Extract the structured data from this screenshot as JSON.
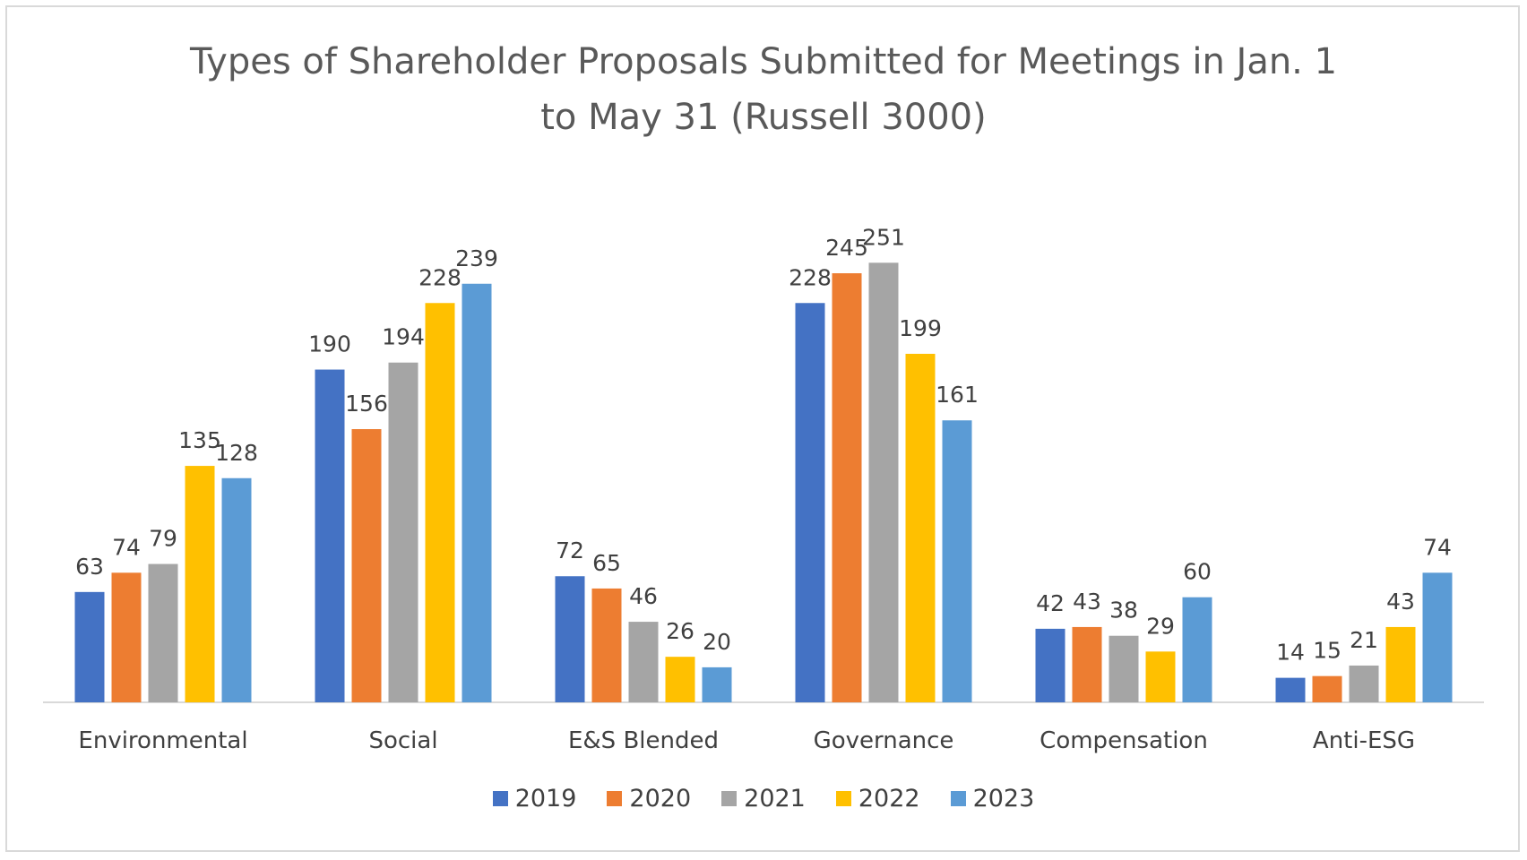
{
  "chart_data": {
    "type": "bar",
    "title": [
      "Types of Shareholder Proposals Submitted for Meetings in Jan. 1",
      "to May 31 (Russell 3000)"
    ],
    "categories": [
      "Environmental",
      "Social",
      "E&S Blended",
      "Governance",
      "Compensation",
      "Anti-ESG"
    ],
    "series": [
      {
        "name": "2019",
        "color": "#4472c4",
        "values": [
          63,
          190,
          72,
          228,
          42,
          14
        ]
      },
      {
        "name": "2020",
        "color": "#ed7d31",
        "values": [
          74,
          156,
          65,
          245,
          43,
          15
        ]
      },
      {
        "name": "2021",
        "color": "#a5a5a5",
        "values": [
          79,
          194,
          46,
          251,
          38,
          21
        ]
      },
      {
        "name": "2022",
        "color": "#ffc000",
        "values": [
          135,
          228,
          26,
          199,
          29,
          43
        ]
      },
      {
        "name": "2023",
        "color": "#5b9bd5",
        "values": [
          128,
          239,
          20,
          161,
          60,
          74
        ]
      }
    ],
    "xlabel": "",
    "ylabel": "",
    "ylim": [
      0,
      280
    ],
    "data_labels": true,
    "grid": false,
    "legend_position": "bottom"
  }
}
